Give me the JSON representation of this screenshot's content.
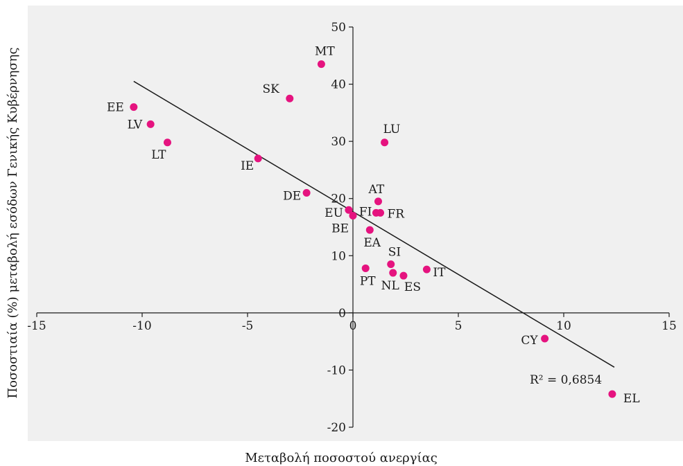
{
  "colors": {
    "plot_background": "#f0f0f0",
    "point": "#e5137f",
    "axis": "#1a1a1a",
    "trendline": "#1a1a1a"
  },
  "chart_data": {
    "type": "scatter",
    "title": "",
    "xlabel": "Μεταβολή ποσοστού ανεργίας",
    "ylabel": "Ποσοστιαία (%) μεταβολή εσόδων Γενικής Κυβέρνησης",
    "xlim": [
      -15,
      15
    ],
    "ylim": [
      -20,
      50
    ],
    "xticks": [
      -15,
      -10,
      -5,
      0,
      5,
      10,
      15
    ],
    "yticks": [
      -20,
      -10,
      0,
      10,
      20,
      30,
      40,
      50
    ],
    "xtick_labels": [
      "-15",
      "-10",
      "-5",
      "0",
      "5",
      "10",
      "15"
    ],
    "ytick_labels": [
      "-20",
      "-10",
      "0",
      "10",
      "20",
      "30",
      "40",
      "50"
    ],
    "grid": false,
    "points": [
      {
        "label": "MT",
        "x": -1.5,
        "y": 43.5
      },
      {
        "label": "SK",
        "x": -3.0,
        "y": 37.5
      },
      {
        "label": "EE",
        "x": -10.4,
        "y": 36.0
      },
      {
        "label": "LV",
        "x": -9.6,
        "y": 33.0
      },
      {
        "label": "LT",
        "x": -8.8,
        "y": 29.8
      },
      {
        "label": "IE",
        "x": -4.5,
        "y": 27.0
      },
      {
        "label": "DE",
        "x": -2.2,
        "y": 21.0
      },
      {
        "label": "LU",
        "x": 1.5,
        "y": 29.8
      },
      {
        "label": "AT",
        "x": 1.2,
        "y": 19.5
      },
      {
        "label": "EU",
        "x": -0.2,
        "y": 18.0
      },
      {
        "label": "FI",
        "x": 1.1,
        "y": 17.5
      },
      {
        "label": "FR",
        "x": 1.3,
        "y": 17.5
      },
      {
        "label": "BE",
        "x": 0.0,
        "y": 17.0
      },
      {
        "label": "EA",
        "x": 0.8,
        "y": 14.5
      },
      {
        "label": "SI",
        "x": 1.8,
        "y": 8.5
      },
      {
        "label": "PT",
        "x": 0.6,
        "y": 7.8
      },
      {
        "label": "NL",
        "x": 1.9,
        "y": 7.0
      },
      {
        "label": "ES",
        "x": 2.4,
        "y": 6.5
      },
      {
        "label": "IT",
        "x": 3.5,
        "y": 7.6
      },
      {
        "label": "CY",
        "x": 9.1,
        "y": -4.5
      },
      {
        "label": "EL",
        "x": 12.3,
        "y": -14.2
      }
    ],
    "trendline": {
      "x": [
        -10.4,
        12.4
      ],
      "y": [
        40.5,
        -9.5
      ]
    },
    "r_squared_label": "R² = 0,6854"
  }
}
